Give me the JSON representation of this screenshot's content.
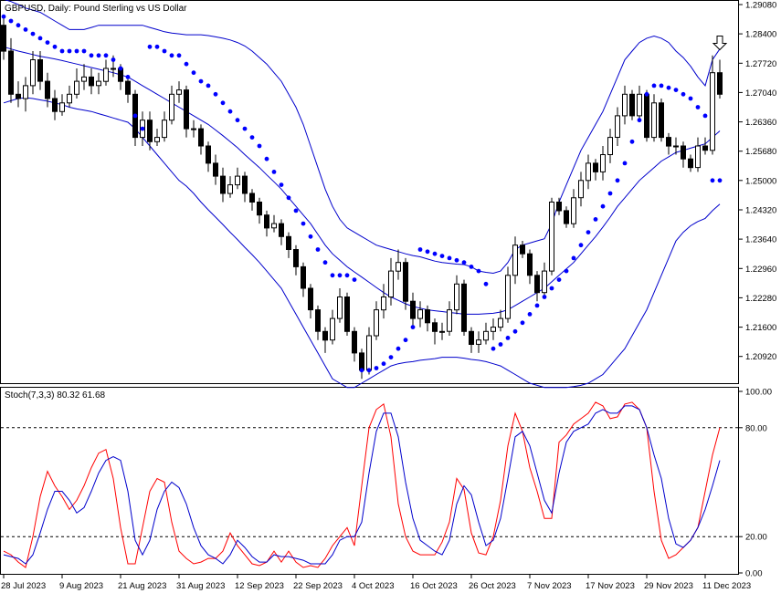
{
  "window": {
    "main_title": "GBPUSD, Daily:  Pound Sterling vs US Dollar",
    "sub_title": "Stoch(7,3,3) 80.32 61.68"
  },
  "colors": {
    "bollinger": "#0000cc",
    "sar": "#0000ff",
    "stoch_main": "#0000cc",
    "stoch_signal": "#ff0000",
    "bull_body": "#ffffff",
    "bear_body": "#000000"
  },
  "chart_data": [
    {
      "type": "candlestick",
      "title": "GBPUSD, Daily:  Pound Sterling vs US Dollar",
      "ylim": [
        1.203,
        1.2908
      ],
      "y_ticks": [
        "1.29080",
        "1.28400",
        "1.27720",
        "1.27040",
        "1.26360",
        "1.25680",
        "1.25000",
        "1.24320",
        "1.23640",
        "1.22960",
        "1.22280",
        "1.21600",
        "1.20920"
      ],
      "y_tick_values": [
        1.2908,
        1.284,
        1.2772,
        1.2704,
        1.2636,
        1.2568,
        1.25,
        1.2432,
        1.2364,
        1.2296,
        1.2228,
        1.216,
        1.2092
      ],
      "x_ticks": [
        "28 Jul 2023",
        "9 Aug 2023",
        "21 Aug 2023",
        "31 Aug 2023",
        "12 Sep 2023",
        "22 Sep 2023",
        "4 Oct 2023",
        "16 Oct 2023",
        "26 Oct 2023",
        "7 Nov 2023",
        "17 Nov 2023",
        "29 Nov 2023",
        "11 Dec 2023"
      ],
      "x_tick_index": [
        0,
        8,
        16,
        24,
        32,
        40,
        48,
        56,
        64,
        72,
        80,
        88,
        96
      ],
      "open": [
        1.286,
        1.28,
        1.27,
        1.269,
        1.272,
        1.278,
        1.273,
        1.269,
        1.266,
        1.268,
        1.27,
        1.273,
        1.274,
        1.272,
        1.273,
        1.276,
        1.276,
        1.273,
        1.27,
        1.26,
        1.264,
        1.259,
        1.26,
        1.264,
        1.27,
        1.271,
        1.262,
        1.262,
        1.258,
        1.254,
        1.251,
        1.247,
        1.249,
        1.251,
        1.247,
        1.245,
        1.242,
        1.239,
        1.24,
        1.237,
        1.234,
        1.23,
        1.225,
        1.22,
        1.215,
        1.213,
        1.218,
        1.223,
        1.215,
        1.21,
        1.206,
        1.214,
        1.22,
        1.223,
        1.229,
        1.231,
        1.222,
        1.218,
        1.22,
        1.217,
        1.215,
        1.215,
        1.22,
        1.226,
        1.215,
        1.212,
        1.213,
        1.215,
        1.216,
        1.218,
        1.228,
        1.235,
        1.233,
        1.228,
        1.224,
        1.229,
        1.245,
        1.243,
        1.24,
        1.246,
        1.25,
        1.254,
        1.252,
        1.256,
        1.26,
        1.265,
        1.27,
        1.265,
        1.27,
        1.26,
        1.268,
        1.26,
        1.258,
        1.258,
        1.255,
        1.253,
        1.258,
        1.257,
        1.275
      ],
      "close": [
        1.28,
        1.27,
        1.269,
        1.272,
        1.278,
        1.273,
        1.269,
        1.266,
        1.268,
        1.27,
        1.273,
        1.274,
        1.272,
        1.273,
        1.276,
        1.276,
        1.273,
        1.27,
        1.26,
        1.264,
        1.259,
        1.26,
        1.264,
        1.27,
        1.271,
        1.262,
        1.262,
        1.258,
        1.254,
        1.251,
        1.247,
        1.249,
        1.251,
        1.247,
        1.245,
        1.242,
        1.239,
        1.24,
        1.237,
        1.234,
        1.23,
        1.225,
        1.22,
        1.215,
        1.213,
        1.218,
        1.223,
        1.215,
        1.21,
        1.206,
        1.214,
        1.22,
        1.223,
        1.229,
        1.231,
        1.222,
        1.218,
        1.22,
        1.217,
        1.215,
        1.215,
        1.22,
        1.226,
        1.215,
        1.212,
        1.213,
        1.215,
        1.216,
        1.218,
        1.228,
        1.235,
        1.233,
        1.228,
        1.224,
        1.229,
        1.245,
        1.243,
        1.24,
        1.246,
        1.25,
        1.254,
        1.252,
        1.256,
        1.26,
        1.265,
        1.27,
        1.265,
        1.27,
        1.26,
        1.268,
        1.26,
        1.258,
        1.258,
        1.255,
        1.253,
        1.258,
        1.257,
        1.275,
        1.27
      ],
      "high": [
        1.288,
        1.283,
        1.273,
        1.274,
        1.28,
        1.28,
        1.275,
        1.271,
        1.27,
        1.272,
        1.276,
        1.277,
        1.276,
        1.275,
        1.278,
        1.279,
        1.277,
        1.274,
        1.271,
        1.266,
        1.266,
        1.262,
        1.266,
        1.272,
        1.273,
        1.272,
        1.264,
        1.263,
        1.259,
        1.256,
        1.253,
        1.251,
        1.253,
        1.252,
        1.248,
        1.246,
        1.243,
        1.242,
        1.241,
        1.238,
        1.235,
        1.231,
        1.226,
        1.221,
        1.216,
        1.22,
        1.225,
        1.224,
        1.216,
        1.211,
        1.216,
        1.222,
        1.226,
        1.232,
        1.234,
        1.232,
        1.224,
        1.222,
        1.221,
        1.218,
        1.217,
        1.222,
        1.228,
        1.227,
        1.216,
        1.215,
        1.217,
        1.218,
        1.22,
        1.23,
        1.237,
        1.236,
        1.234,
        1.229,
        1.231,
        1.246,
        1.246,
        1.244,
        1.248,
        1.252,
        1.256,
        1.255,
        1.258,
        1.262,
        1.267,
        1.272,
        1.271,
        1.272,
        1.271,
        1.27,
        1.269,
        1.261,
        1.26,
        1.259,
        1.256,
        1.26,
        1.26,
        1.279,
        1.278
      ],
      "low": [
        1.278,
        1.268,
        1.267,
        1.266,
        1.27,
        1.271,
        1.267,
        1.264,
        1.265,
        1.267,
        1.269,
        1.271,
        1.27,
        1.27,
        1.272,
        1.274,
        1.271,
        1.268,
        1.258,
        1.258,
        1.257,
        1.258,
        1.259,
        1.263,
        1.268,
        1.26,
        1.26,
        1.256,
        1.252,
        1.249,
        1.245,
        1.246,
        1.248,
        1.245,
        1.243,
        1.24,
        1.237,
        1.238,
        1.235,
        1.232,
        1.228,
        1.223,
        1.218,
        1.213,
        1.21,
        1.212,
        1.217,
        1.214,
        1.208,
        1.204,
        1.205,
        1.213,
        1.218,
        1.221,
        1.227,
        1.22,
        1.216,
        1.216,
        1.215,
        1.212,
        1.213,
        1.214,
        1.219,
        1.214,
        1.21,
        1.21,
        1.212,
        1.213,
        1.215,
        1.217,
        1.226,
        1.232,
        1.226,
        1.222,
        1.223,
        1.228,
        1.242,
        1.239,
        1.239,
        1.244,
        1.248,
        1.25,
        1.25,
        1.254,
        1.258,
        1.263,
        1.264,
        1.264,
        1.259,
        1.259,
        1.259,
        1.256,
        1.256,
        1.253,
        1.252,
        1.252,
        1.256,
        1.256,
        1.269
      ],
      "bollinger_upper": [
        1.292,
        1.2915,
        1.2908,
        1.29,
        1.2895,
        1.289,
        1.288,
        1.287,
        1.286,
        1.285,
        1.285,
        1.285,
        1.2855,
        1.286,
        1.286,
        1.286,
        1.286,
        1.286,
        1.286,
        1.286,
        1.2855,
        1.285,
        1.2845,
        1.2842,
        1.284,
        1.2838,
        1.2838,
        1.2838,
        1.2836,
        1.2833,
        1.283,
        1.2826,
        1.282,
        1.2812,
        1.28,
        1.2785,
        1.277,
        1.275,
        1.273,
        1.27,
        1.267,
        1.263,
        1.258,
        1.253,
        1.248,
        1.244,
        1.241,
        1.239,
        1.238,
        1.237,
        1.236,
        1.235,
        1.2345,
        1.234,
        1.2335,
        1.233,
        1.2326,
        1.2323,
        1.2318,
        1.2313,
        1.231,
        1.2308,
        1.2306,
        1.2305,
        1.23,
        1.229,
        1.2287,
        1.2285,
        1.229,
        1.231,
        1.234,
        1.235,
        1.2355,
        1.236,
        1.2365,
        1.24,
        1.245,
        1.249,
        1.253,
        1.257,
        1.26,
        1.263,
        1.266,
        1.27,
        1.274,
        1.278,
        1.28,
        1.282,
        1.283,
        1.2835,
        1.283,
        1.282,
        1.28,
        1.2785,
        1.2765,
        1.274,
        1.272,
        1.278,
        1.2805
      ],
      "bollinger_mid": [
        1.281,
        1.2805,
        1.28,
        1.2796,
        1.2792,
        1.2788,
        1.2785,
        1.2782,
        1.2778,
        1.2774,
        1.277,
        1.2766,
        1.2762,
        1.2758,
        1.2754,
        1.275,
        1.2745,
        1.274,
        1.273,
        1.272,
        1.271,
        1.27,
        1.269,
        1.268,
        1.267,
        1.266,
        1.265,
        1.264,
        1.263,
        1.2617,
        1.2604,
        1.259,
        1.2576,
        1.256,
        1.2545,
        1.253,
        1.2513,
        1.2497,
        1.248,
        1.246,
        1.244,
        1.242,
        1.24,
        1.2375,
        1.235,
        1.233,
        1.2315,
        1.23,
        1.2288,
        1.2276,
        1.2264,
        1.2252,
        1.224,
        1.223,
        1.2222,
        1.2214,
        1.2208,
        1.2204,
        1.22,
        1.2198,
        1.2196,
        1.2194,
        1.2192,
        1.219,
        1.219,
        1.219,
        1.2191,
        1.2192,
        1.2195,
        1.22,
        1.221,
        1.222,
        1.223,
        1.224,
        1.225,
        1.2265,
        1.228,
        1.2295,
        1.231,
        1.233,
        1.235,
        1.237,
        1.2392,
        1.2415,
        1.244,
        1.246,
        1.248,
        1.25,
        1.2515,
        1.253,
        1.2545,
        1.2555,
        1.2565,
        1.257,
        1.2575,
        1.258,
        1.2585,
        1.26,
        1.2615
      ],
      "bollinger_lower": [
        1.268,
        1.2685,
        1.269,
        1.2692,
        1.269,
        1.2687,
        1.2684,
        1.268,
        1.2676,
        1.267,
        1.2666,
        1.2663,
        1.266,
        1.2655,
        1.265,
        1.2645,
        1.264,
        1.2635,
        1.262,
        1.26,
        1.258,
        1.256,
        1.254,
        1.252,
        1.25,
        1.2487,
        1.247,
        1.245,
        1.2432,
        1.2415,
        1.2398,
        1.238,
        1.2363,
        1.2345,
        1.2328,
        1.231,
        1.229,
        1.227,
        1.225,
        1.222,
        1.219,
        1.216,
        1.213,
        1.21,
        1.207,
        1.204,
        1.203,
        1.202,
        1.202,
        1.203,
        1.204,
        1.205,
        1.206,
        1.207,
        1.2075,
        1.2078,
        1.208,
        1.2083,
        1.2085,
        1.2087,
        1.209,
        1.209,
        1.209,
        1.2088,
        1.2085,
        1.2083,
        1.208,
        1.2075,
        1.207,
        1.206,
        1.205,
        1.204,
        1.203,
        1.2025,
        1.202,
        1.202,
        1.202,
        1.202,
        1.2022,
        1.2025,
        1.203,
        1.204,
        1.205,
        1.207,
        1.209,
        1.211,
        1.214,
        1.217,
        1.22,
        1.224,
        1.228,
        1.232,
        1.236,
        1.238,
        1.2395,
        1.2405,
        1.2412,
        1.243,
        1.2445
      ],
      "sar": [
        1.288,
        1.287,
        1.286,
        1.285,
        1.284,
        1.283,
        1.282,
        1.281,
        1.28,
        1.28,
        1.28,
        1.28,
        1.279,
        1.279,
        1.279,
        1.278,
        1.276,
        1.274,
        1.265,
        1.262,
        1.281,
        1.281,
        1.28,
        1.279,
        1.279,
        1.277,
        1.275,
        1.273,
        1.272,
        1.27,
        1.268,
        1.266,
        1.264,
        1.262,
        1.26,
        1.258,
        1.255,
        1.252,
        1.249,
        1.246,
        1.243,
        1.24,
        1.237,
        1.234,
        1.231,
        1.228,
        1.228,
        1.228,
        1.227,
        1.206,
        1.206,
        1.2065,
        1.2075,
        1.209,
        1.211,
        1.213,
        1.216,
        1.234,
        1.2335,
        1.233,
        1.2325,
        1.232,
        1.2315,
        1.231,
        1.23,
        1.229,
        1.226,
        1.211,
        1.212,
        1.2135,
        1.215,
        1.217,
        1.219,
        1.221,
        1.223,
        1.225,
        1.227,
        1.229,
        1.232,
        1.235,
        1.238,
        1.241,
        1.244,
        1.247,
        1.25,
        1.254,
        1.259,
        1.264,
        1.27,
        1.272,
        1.272,
        1.2715,
        1.271,
        1.27,
        1.269,
        1.267,
        1.265,
        1.25,
        1.25
      ],
      "arrow": {
        "index": 98,
        "direction": "down"
      }
    },
    {
      "type": "line",
      "title": "Stoch(7,3,3) 80.32 61.68",
      "ylim": [
        0,
        100
      ],
      "y_ticks": [
        "100.00",
        "80.00",
        "20.00",
        "0.00"
      ],
      "y_tick_values": [
        100,
        80,
        20,
        0
      ],
      "levels": [
        80,
        20
      ],
      "series": [
        {
          "values": [
            10,
            9,
            8,
            5,
            10,
            22,
            35,
            45,
            45,
            40,
            33,
            36,
            45,
            55,
            62,
            64,
            62,
            45,
            18,
            10,
            18,
            35,
            45,
            50,
            47,
            38,
            25,
            15,
            10,
            8,
            5,
            10,
            18,
            14,
            9,
            6,
            6,
            10,
            9,
            9,
            8,
            7,
            5,
            5,
            5,
            10,
            18,
            20,
            20,
            28,
            55,
            78,
            88,
            88,
            75,
            50,
            30,
            18,
            15,
            12,
            10,
            18,
            38,
            48,
            43,
            28,
            15,
            18,
            30,
            52,
            75,
            78,
            70,
            55,
            40,
            33,
            55,
            72,
            78,
            80,
            82,
            88,
            90,
            88,
            88,
            92,
            92,
            90,
            80,
            65,
            52,
            30,
            16,
            14,
            18,
            25,
            35,
            48,
            62
          ]
        },
        {
          "values": [
            12,
            10,
            6,
            3,
            20,
            42,
            56,
            48,
            42,
            35,
            40,
            48,
            58,
            66,
            68,
            52,
            25,
            5,
            5,
            25,
            45,
            52,
            50,
            28,
            12,
            8,
            5,
            6,
            8,
            8,
            12,
            22,
            15,
            10,
            5,
            4,
            6,
            12,
            6,
            12,
            6,
            3,
            4,
            3,
            8,
            15,
            20,
            25,
            15,
            48,
            80,
            90,
            93,
            75,
            38,
            20,
            12,
            10,
            10,
            10,
            17,
            28,
            52,
            46,
            22,
            11,
            10,
            20,
            40,
            70,
            88,
            78,
            58,
            45,
            30,
            30,
            72,
            76,
            82,
            85,
            88,
            94,
            92,
            85,
            86,
            93,
            94,
            90,
            80,
            45,
            18,
            8,
            10,
            14,
            18,
            25,
            45,
            65,
            80
          ]
        }
      ]
    }
  ]
}
